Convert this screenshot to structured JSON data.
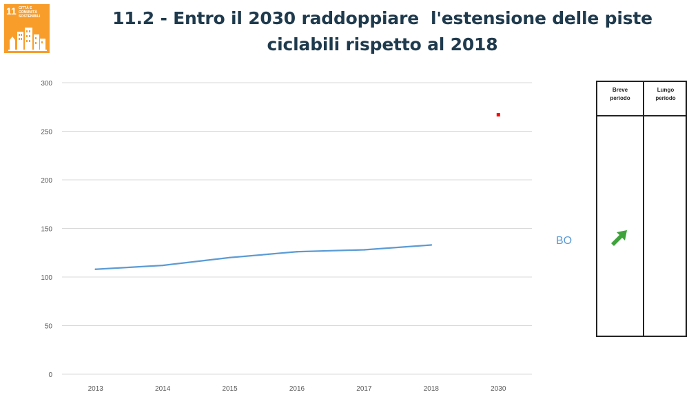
{
  "sdg_badge": {
    "number": "11",
    "text": "Città e comunità sostenibili",
    "color": "#f89d2a",
    "icon": "city-buildings-icon"
  },
  "title": {
    "line1": "11.2 - Entro il 2030 raddoppiare  l'estensione delle piste",
    "line2": "ciclabili rispetto al 2018"
  },
  "chart_data": {
    "type": "line",
    "categories": [
      "2013",
      "2014",
      "2015",
      "2016",
      "2017",
      "2018",
      "2030"
    ],
    "series": [
      {
        "values": [
          108,
          112,
          120,
          126,
          128,
          133,
          null
        ],
        "color": "#5b9bd5"
      },
      {
        "values": [
          null,
          null,
          null,
          null,
          null,
          null,
          267
        ],
        "color": "#ff0000",
        "marker": "square"
      }
    ],
    "ylim": [
      0,
      300
    ],
    "yticks": [
      0,
      50,
      100,
      150,
      200,
      250,
      300
    ],
    "grid": true,
    "title": "",
    "xlabel": "",
    "ylabel": ""
  },
  "city_label": "BO",
  "trend_table": {
    "headers": [
      "Breve\nperiodo",
      "Lungo\nperiodo"
    ],
    "short_term_arrow": "up-right-arrow-icon",
    "arrow_color": "#3ea33a"
  }
}
